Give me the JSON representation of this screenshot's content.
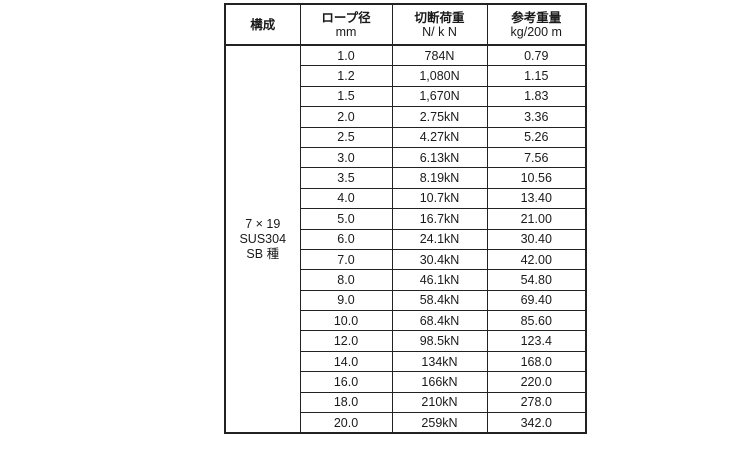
{
  "headers": {
    "structure": "構成",
    "rope_diameter": {
      "title": "ロープ径",
      "unit": "mm"
    },
    "breaking_load": {
      "title": "切断荷重",
      "unit": "N/ k N"
    },
    "reference_weight": {
      "title": "参考重量",
      "unit": "kg/200 m"
    }
  },
  "structure": {
    "line1": "7 × 19",
    "line2": "SUS304",
    "line3": "SB 種"
  },
  "rows": [
    {
      "diameter": "1.0",
      "load": "784N",
      "weight": "0.79"
    },
    {
      "diameter": "1.2",
      "load": "1,080N",
      "weight": "1.15"
    },
    {
      "diameter": "1.5",
      "load": "1,670N",
      "weight": "1.83"
    },
    {
      "diameter": "2.0",
      "load": "2.75kN",
      "weight": "3.36"
    },
    {
      "diameter": "2.5",
      "load": "4.27kN",
      "weight": "5.26"
    },
    {
      "diameter": "3.0",
      "load": "6.13kN",
      "weight": "7.56"
    },
    {
      "diameter": "3.5",
      "load": "8.19kN",
      "weight": "10.56"
    },
    {
      "diameter": "4.0",
      "load": "10.7kN",
      "weight": "13.40"
    },
    {
      "diameter": "5.0",
      "load": "16.7kN",
      "weight": "21.00"
    },
    {
      "diameter": "6.0",
      "load": "24.1kN",
      "weight": "30.40"
    },
    {
      "diameter": "7.0",
      "load": "30.4kN",
      "weight": "42.00"
    },
    {
      "diameter": "8.0",
      "load": "46.1kN",
      "weight": "54.80"
    },
    {
      "diameter": "9.0",
      "load": "58.4kN",
      "weight": "69.40"
    },
    {
      "diameter": "10.0",
      "load": "68.4kN",
      "weight": "85.60"
    },
    {
      "diameter": "12.0",
      "load": "98.5kN",
      "weight": "123.4"
    },
    {
      "diameter": "14.0",
      "load": "134kN",
      "weight": "168.0"
    },
    {
      "diameter": "16.0",
      "load": "166kN",
      "weight": "220.0"
    },
    {
      "diameter": "18.0",
      "load": "210kN",
      "weight": "278.0"
    },
    {
      "diameter": "20.0",
      "load": "259kN",
      "weight": "342.0"
    }
  ]
}
